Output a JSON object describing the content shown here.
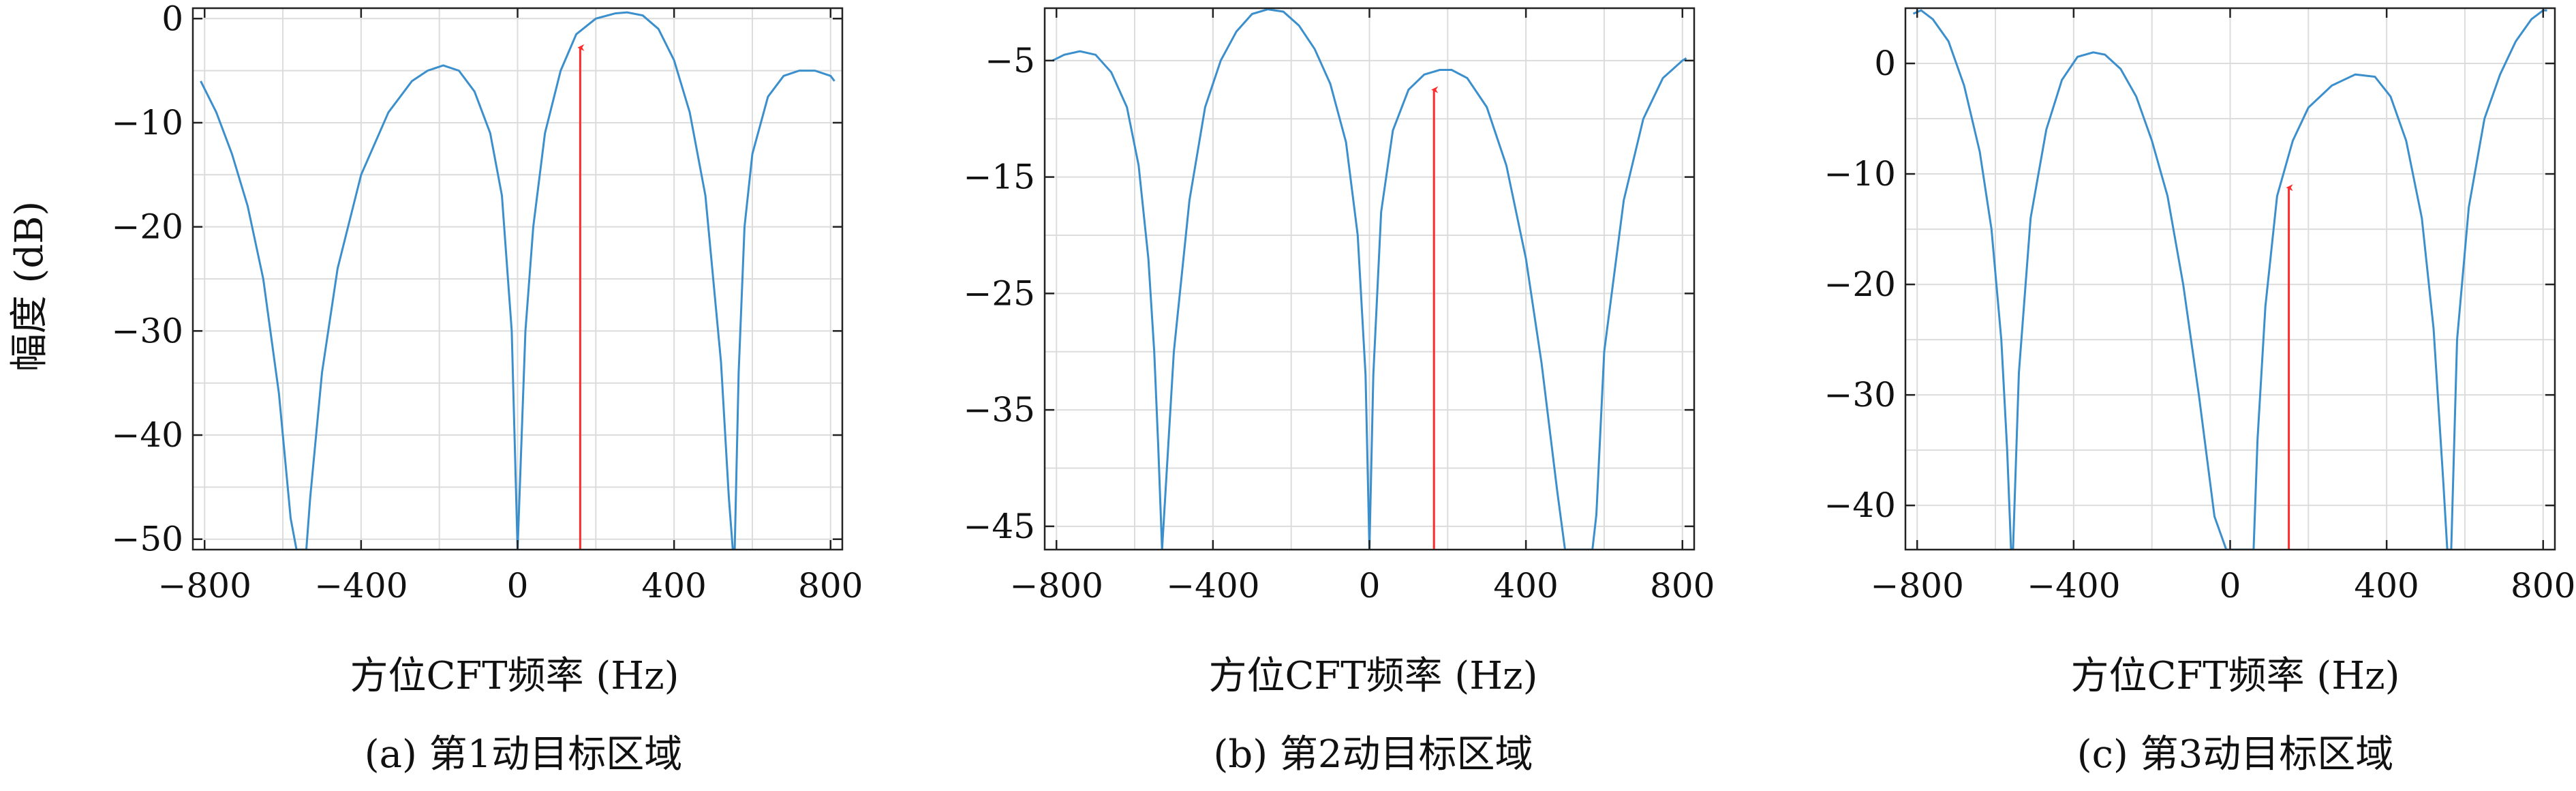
{
  "colors": {
    "curve": "#3b8fcc",
    "arrow": "#ff2a2a",
    "grid": "#dcdcdc",
    "frame": "#222222"
  },
  "chart_data": [
    {
      "type": "line",
      "caption": "(a) 第1动目标区域",
      "xlabel": "方位CFT频率 (Hz)",
      "ylabel": "幅度 (dB)",
      "xlim": [
        -830,
        830
      ],
      "ylim": [
        -51,
        1
      ],
      "xticks": [
        -800,
        -400,
        0,
        400,
        800
      ],
      "xtick_labels": [
        "−800",
        "−400",
        "0",
        "400",
        "800"
      ],
      "yticks": [
        0,
        -10,
        -20,
        -30,
        -40,
        -50
      ],
      "ytick_labels": [
        "0",
        "−10",
        "−20",
        "−30",
        "−40",
        "−50"
      ],
      "grid": true,
      "series": [
        {
          "x": [
            -810,
            -770,
            -730,
            -690,
            -650,
            -610,
            -580,
            -565,
            -540,
            -530,
            -500,
            -460,
            -400,
            -330,
            -270,
            -230,
            -190,
            -150,
            -110,
            -70,
            -40,
            -15,
            0,
            20,
            40,
            70,
            110,
            150,
            200,
            250,
            280,
            320,
            360,
            400,
            440,
            480,
            520,
            540,
            550,
            555,
            565,
            580,
            600,
            640,
            680,
            720,
            760,
            800,
            810
          ],
          "y": [
            -6,
            -9,
            -13,
            -18,
            -25,
            -36,
            -48,
            -51,
            -51,
            -46,
            -34,
            -24,
            -15,
            -9,
            -6,
            -5,
            -4.5,
            -5,
            -7,
            -11,
            -17,
            -30,
            -51,
            -30,
            -20,
            -11,
            -5,
            -1.5,
            0,
            0.5,
            0.6,
            0.3,
            -1,
            -4,
            -9,
            -17,
            -33,
            -46,
            -51,
            -51,
            -34,
            -20,
            -13,
            -7.5,
            -5.5,
            -5,
            -5,
            -5.5,
            -6
          ]
        }
      ],
      "arrow": {
        "x": 160,
        "y_from": -51,
        "y_to": -2
      }
    },
    {
      "type": "line",
      "caption": "(b) 第2动目标区域",
      "xlabel": "方位CFT频率 (Hz)",
      "ylabel": "",
      "xlim": [
        -830,
        830
      ],
      "ylim": [
        -47,
        -0.5
      ],
      "xticks": [
        -800,
        -400,
        0,
        400,
        800
      ],
      "xtick_labels": [
        "−800",
        "−400",
        "0",
        "400",
        "800"
      ],
      "yticks": [
        -5,
        -15,
        -25,
        -35,
        -45
      ],
      "ytick_labels": [
        "−5",
        "−15",
        "−25",
        "−35",
        "−45"
      ],
      "grid": true,
      "series": [
        {
          "x": [
            -810,
            -780,
            -740,
            -700,
            -660,
            -620,
            -590,
            -565,
            -550,
            -540,
            -530,
            -500,
            -460,
            -420,
            -380,
            -340,
            -300,
            -260,
            -220,
            -180,
            -140,
            -100,
            -60,
            -30,
            -10,
            0,
            10,
            30,
            60,
            100,
            140,
            180,
            210,
            250,
            300,
            350,
            400,
            440,
            480,
            500,
            510,
            520,
            540,
            560,
            570,
            580,
            600,
            650,
            700,
            750,
            800,
            810
          ],
          "y": [
            -5,
            -4.5,
            -4.2,
            -4.5,
            -6,
            -9,
            -14,
            -22,
            -30,
            -38,
            -47,
            -30,
            -17,
            -9,
            -5,
            -2.5,
            -1,
            -0.6,
            -0.8,
            -2,
            -4,
            -7,
            -12,
            -20,
            -32,
            -47,
            -32,
            -18,
            -11,
            -7.5,
            -6.2,
            -5.8,
            -5.8,
            -6.5,
            -9,
            -14,
            -22,
            -31,
            -42,
            -47,
            -47,
            -47,
            -47,
            -47,
            -47,
            -44,
            -30,
            -17,
            -10,
            -6.5,
            -5,
            -4.8
          ]
        }
      ],
      "arrow": {
        "x": 165,
        "y_from": -47,
        "y_to": -6.8
      }
    },
    {
      "type": "line",
      "caption": "(c) 第3动目标区域",
      "xlabel": "方位CFT频率 (Hz)",
      "ylabel": "",
      "xlim": [
        -830,
        830
      ],
      "ylim": [
        -44,
        5
      ],
      "xticks": [
        -800,
        -400,
        0,
        400,
        800
      ],
      "xtick_labels": [
        "−800",
        "−400",
        "0",
        "400",
        "800"
      ],
      "yticks": [
        0,
        -10,
        -20,
        -30,
        -40
      ],
      "ytick_labels": [
        "0",
        "−10",
        "−20",
        "−30",
        "−40"
      ],
      "grid": true,
      "series": [
        {
          "x": [
            -810,
            -790,
            -760,
            -720,
            -680,
            -640,
            -610,
            -585,
            -570,
            -560,
            -555,
            -540,
            -510,
            -470,
            -430,
            -390,
            -350,
            -320,
            -280,
            -240,
            -200,
            -160,
            -120,
            -80,
            -40,
            -10,
            -5,
            0,
            30,
            60,
            70,
            90,
            120,
            160,
            200,
            260,
            320,
            370,
            410,
            450,
            490,
            520,
            545,
            555,
            565,
            580,
            610,
            650,
            690,
            730,
            770,
            800,
            810
          ],
          "y": [
            4.5,
            4.8,
            4,
            2,
            -2,
            -8,
            -15,
            -25,
            -35,
            -44,
            -44,
            -28,
            -14,
            -6,
            -1.5,
            0.6,
            1,
            0.8,
            -0.5,
            -3,
            -7,
            -12,
            -20,
            -30,
            -41,
            -44,
            -44,
            -44,
            -44,
            -44,
            -34,
            -22,
            -12,
            -7,
            -4,
            -2,
            -1,
            -1.2,
            -3,
            -7,
            -14,
            -24,
            -38,
            -44,
            -44,
            -25,
            -13,
            -5,
            -1,
            2,
            4,
            4.8,
            4.8
          ]
        }
      ],
      "arrow": {
        "x": 150,
        "y_from": -44,
        "y_to": -10.5
      }
    }
  ]
}
